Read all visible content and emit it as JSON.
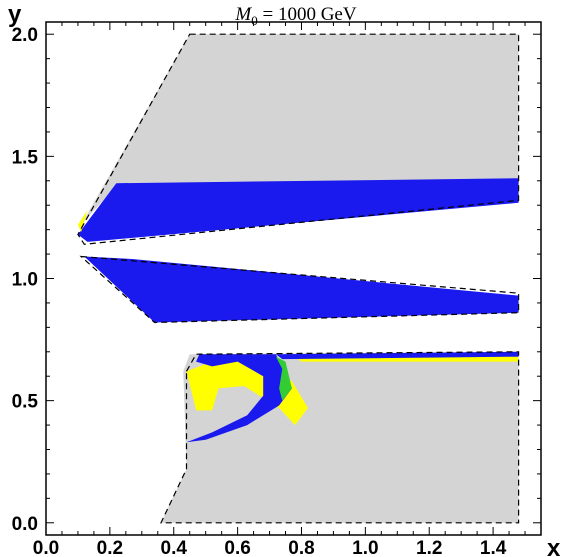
{
  "chart_data": {
    "type": "region",
    "title_italic": "M",
    "title_subscript": "0",
    "title_rest": " = 1000 GeV",
    "xlabel": "x",
    "ylabel": "y",
    "xlim": [
      0.0,
      1.55
    ],
    "ylim": [
      -0.05,
      2.05
    ],
    "xticks": [
      {
        "value": 0.0,
        "label": "0.0"
      },
      {
        "value": 0.2,
        "label": "0.2"
      },
      {
        "value": 0.4,
        "label": "0.4"
      },
      {
        "value": 0.6,
        "label": "0.6"
      },
      {
        "value": 0.8,
        "label": "0.8"
      },
      {
        "value": 1.0,
        "label": "1.0"
      },
      {
        "value": 1.2,
        "label": "1.2"
      },
      {
        "value": 1.4,
        "label": "1.4"
      }
    ],
    "yticks": [
      {
        "value": 0.0,
        "label": "0.0"
      },
      {
        "value": 0.5,
        "label": "0.5"
      },
      {
        "value": 1.0,
        "label": "1.0"
      },
      {
        "value": 1.5,
        "label": "1.5"
      },
      {
        "value": 2.0,
        "label": "2.0"
      }
    ],
    "colors": {
      "gray": "#d4d4d4",
      "blue": "#1a1aee",
      "yellow": "#ffff00",
      "green": "#33cc33"
    },
    "regions": [
      {
        "name": "upper-gray-region",
        "color": "gray",
        "points": [
          [
            0.45,
            2.0
          ],
          [
            1.48,
            2.0
          ],
          [
            1.48,
            1.4
          ],
          [
            0.22,
            1.38
          ],
          [
            0.11,
            1.22
          ],
          [
            0.18,
            1.38
          ],
          [
            0.45,
            2.0
          ]
        ]
      },
      {
        "name": "upper-blue-band",
        "color": "blue",
        "points": [
          [
            0.22,
            1.39
          ],
          [
            1.48,
            1.41
          ],
          [
            1.48,
            1.31
          ],
          [
            0.13,
            1.15
          ],
          [
            0.1,
            1.18
          ],
          [
            0.22,
            1.39
          ]
        ]
      },
      {
        "name": "upper-yellow-edge",
        "color": "yellow",
        "points": [
          [
            0.1,
            1.22
          ],
          [
            0.13,
            1.28
          ],
          [
            0.11,
            1.19
          ]
        ]
      },
      {
        "name": "middle-blue-band",
        "color": "blue",
        "points": [
          [
            0.12,
            1.09
          ],
          [
            0.27,
            1.08
          ],
          [
            1.48,
            0.93
          ],
          [
            1.48,
            0.86
          ],
          [
            0.34,
            0.82
          ],
          [
            0.12,
            1.09
          ]
        ]
      },
      {
        "name": "lower-gray-region",
        "color": "gray",
        "points": [
          [
            0.45,
            0.69
          ],
          [
            1.48,
            0.7
          ],
          [
            1.48,
            0.0
          ],
          [
            0.36,
            0.0
          ],
          [
            0.44,
            0.22
          ],
          [
            0.43,
            0.62
          ],
          [
            0.45,
            0.69
          ]
        ]
      },
      {
        "name": "lower-yellow-region",
        "color": "yellow",
        "points": [
          [
            0.44,
            0.62
          ],
          [
            0.52,
            0.66
          ],
          [
            0.62,
            0.66
          ],
          [
            0.7,
            0.62
          ],
          [
            0.77,
            0.58
          ],
          [
            0.82,
            0.47
          ],
          [
            0.78,
            0.4
          ],
          [
            0.73,
            0.47
          ],
          [
            0.62,
            0.56
          ],
          [
            0.54,
            0.55
          ],
          [
            0.52,
            0.46
          ],
          [
            0.47,
            0.46
          ],
          [
            0.44,
            0.62
          ]
        ]
      },
      {
        "name": "lower-yellow-strip",
        "color": "yellow",
        "points": [
          [
            0.78,
            0.68
          ],
          [
            1.48,
            0.7
          ],
          [
            1.48,
            0.66
          ],
          [
            0.8,
            0.66
          ]
        ]
      },
      {
        "name": "lower-blue-crescent",
        "color": "blue",
        "points": [
          [
            0.47,
            0.66
          ],
          [
            0.48,
            0.69
          ],
          [
            0.72,
            0.69
          ],
          [
            0.77,
            0.55
          ],
          [
            0.73,
            0.48
          ],
          [
            0.63,
            0.4
          ],
          [
            0.5,
            0.34
          ],
          [
            0.44,
            0.33
          ],
          [
            0.52,
            0.37
          ],
          [
            0.63,
            0.44
          ],
          [
            0.68,
            0.52
          ],
          [
            0.68,
            0.6
          ],
          [
            0.6,
            0.66
          ],
          [
            0.52,
            0.64
          ],
          [
            0.47,
            0.66
          ]
        ]
      },
      {
        "name": "lower-blue-strip",
        "color": "blue",
        "points": [
          [
            0.72,
            0.69
          ],
          [
            1.48,
            0.7
          ],
          [
            1.48,
            0.68
          ],
          [
            0.74,
            0.67
          ]
        ]
      },
      {
        "name": "lower-green-arc",
        "color": "green",
        "points": [
          [
            0.72,
            0.68
          ],
          [
            0.75,
            0.66
          ],
          [
            0.77,
            0.55
          ],
          [
            0.74,
            0.5
          ],
          [
            0.73,
            0.55
          ],
          [
            0.74,
            0.63
          ]
        ]
      }
    ],
    "boundaries": [
      {
        "name": "upper-boundary",
        "points": [
          [
            0.45,
            2.0
          ],
          [
            1.48,
            2.0
          ],
          [
            1.48,
            1.32
          ],
          [
            0.12,
            1.14
          ],
          [
            0.1,
            1.18
          ],
          [
            0.45,
            2.0
          ]
        ]
      },
      {
        "name": "middle-boundary",
        "points": [
          [
            0.11,
            1.09
          ],
          [
            1.48,
            0.94
          ],
          [
            1.48,
            0.86
          ],
          [
            0.34,
            0.82
          ],
          [
            0.11,
            1.09
          ]
        ]
      },
      {
        "name": "lower-boundary",
        "points": [
          [
            0.44,
            0.62
          ],
          [
            0.47,
            0.69
          ],
          [
            1.48,
            0.7
          ],
          [
            1.48,
            0.0
          ],
          [
            0.36,
            0.0
          ],
          [
            0.44,
            0.22
          ],
          [
            0.44,
            0.62
          ]
        ]
      }
    ]
  }
}
